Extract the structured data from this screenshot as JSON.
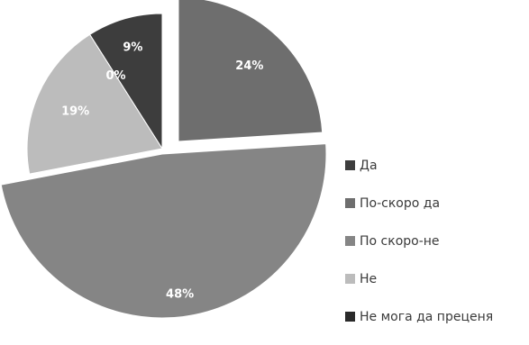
{
  "chart_data": {
    "type": "pie",
    "title": "",
    "slices": [
      {
        "label": "Да",
        "value": 9,
        "display": "9%",
        "color": "#3d3d3d"
      },
      {
        "label": "По-скоро да",
        "value": 24,
        "display": "24%",
        "color": "#6e6e6e"
      },
      {
        "label": "По скоро-не",
        "value": 48,
        "display": "48%",
        "color": "#858585"
      },
      {
        "label": "Не",
        "value": 19,
        "display": "19%",
        "color": "#bcbcbc"
      },
      {
        "label": "Не мога да преценя",
        "value": 0,
        "display": "0%",
        "color": "#2a2a2a"
      }
    ],
    "legend_position": "right"
  }
}
